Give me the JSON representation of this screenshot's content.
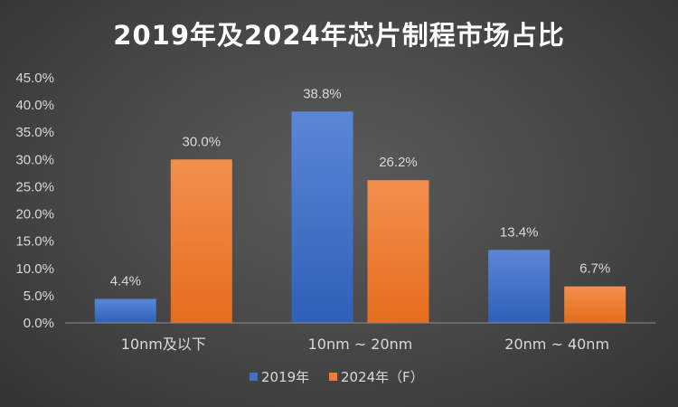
{
  "chart_data": {
    "type": "bar",
    "title": "2019年及2024年芯片制程市场占比",
    "categories": [
      "10nm及以下",
      "10nm ~ 20nm",
      "20nm ~ 40nm"
    ],
    "series": [
      {
        "name": "2019年",
        "values": [
          4.4,
          38.8,
          13.4
        ],
        "labels": [
          "4.4%",
          "38.8%",
          "13.4%"
        ],
        "color": "#4472c4"
      },
      {
        "name": "2024年（F）",
        "values": [
          30.0,
          26.2,
          6.7
        ],
        "labels": [
          "30.0%",
          "26.2%",
          "6.7%"
        ],
        "color": "#ed7d31"
      }
    ],
    "y_ticks": [
      "0.0%",
      "5.0%",
      "10.0%",
      "15.0%",
      "20.0%",
      "25.0%",
      "30.0%",
      "35.0%",
      "40.0%",
      "45.0%"
    ],
    "ylim": [
      0,
      45
    ],
    "grid": false,
    "legend_position": "bottom"
  },
  "colors": {
    "background": "#474747",
    "text": "#d9d9d9",
    "title": "#ffffff"
  }
}
